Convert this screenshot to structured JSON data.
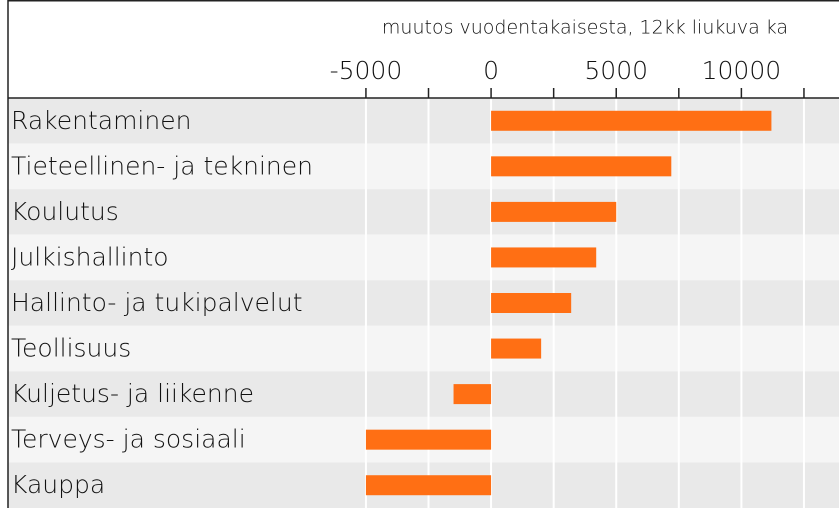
{
  "chart_data": {
    "type": "hbar",
    "title": "muutos vuodentakaisesta, 12kk liukuva ka",
    "categories": [
      "Rakentaminen",
      "Tieteellinen- ja tekninen",
      "Koulutus",
      "Julkishallinto",
      "Hallinto- ja tukipalvelut",
      "Teollisuus",
      "Kuljetus- ja liikenne",
      "Terveys- ja sosiaali",
      "Kauppa"
    ],
    "values": [
      11200,
      7200,
      5000,
      4200,
      3200,
      2000,
      -1500,
      -5000,
      -5000
    ],
    "color": "#ff6f14",
    "xlim": [
      -19300,
      13900
    ],
    "xticks": [
      -5000,
      0,
      5000,
      10000
    ],
    "xminor_ticks": [
      -2500,
      2500,
      7500,
      12500
    ],
    "grid": true
  }
}
